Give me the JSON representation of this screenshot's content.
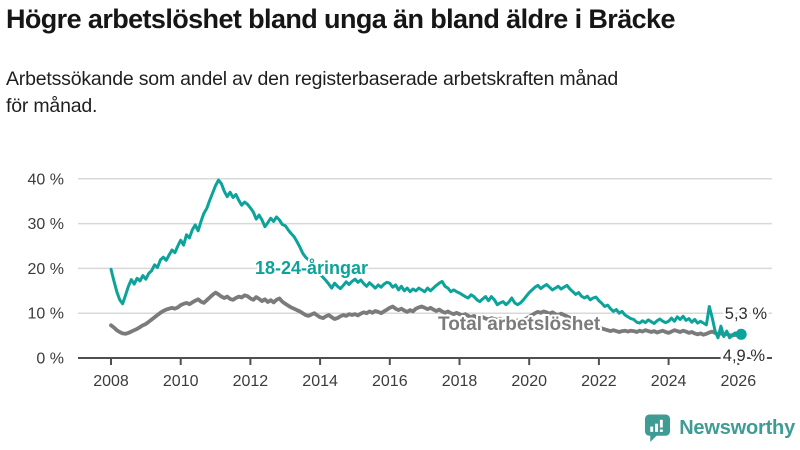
{
  "header": {
    "title": "Högre arbetslöshet bland unga än bland äldre i Bräcke",
    "subtitle_line1": "Arbetssökande som andel av den registerbaserade arbetskraften månad",
    "subtitle_line2": "för månad."
  },
  "chart_data": {
    "type": "line",
    "title": "Högre arbetslöshet bland unga än bland äldre i Bräcke",
    "subtitle": "Arbetssökande som andel av den registerbaserade arbetskraften månad för månad.",
    "frequency": "monthly",
    "x_start": "2008-01",
    "x_end": "2026-02",
    "x_tick_years": [
      2008,
      2010,
      2012,
      2014,
      2016,
      2018,
      2020,
      2022,
      2024,
      2026
    ],
    "x_tick_labels": [
      "2008",
      "2010",
      "2012",
      "2014",
      "2016",
      "2018",
      "2020",
      "2022",
      "2024",
      "2026"
    ],
    "y_tick_values": [
      0,
      10,
      20,
      30,
      40
    ],
    "y_tick_labels": [
      "0 %",
      "10 %",
      "20 %",
      "30 %",
      "40 %"
    ],
    "ylim": [
      0,
      42
    ],
    "grid": "horizontal",
    "colors": {
      "youth": "#0ca39a",
      "total": "#7b7b7b",
      "grid": "#d9d9d9",
      "axis": "#4f4f4f"
    },
    "series": [
      {
        "name": "18-24-åringar",
        "color": "#0ca39a",
        "end_label": "5,3 %",
        "end_value": 5.3,
        "end_dot": true,
        "values": [
          19.8,
          17.2,
          14.8,
          13.0,
          12.1,
          14.0,
          16.0,
          17.5,
          16.5,
          17.8,
          17.2,
          18.4,
          17.6,
          18.9,
          19.5,
          20.8,
          20.2,
          21.9,
          22.5,
          21.8,
          23.0,
          24.1,
          23.5,
          25.0,
          26.3,
          25.2,
          27.5,
          26.8,
          28.6,
          29.7,
          28.4,
          30.5,
          32.3,
          33.4,
          35.2,
          36.8,
          38.5,
          39.7,
          38.9,
          37.2,
          36.0,
          37.0,
          35.8,
          36.5,
          35.2,
          34.1,
          34.8,
          34.3,
          33.5,
          32.6,
          31.0,
          31.9,
          30.8,
          29.3,
          30.2,
          31.2,
          30.5,
          31.5,
          30.8,
          29.8,
          29.5,
          28.6,
          27.8,
          27.1,
          26.0,
          24.8,
          23.4,
          22.5,
          21.9,
          21.0,
          20.3,
          19.5,
          18.8,
          18.0,
          17.3,
          16.5,
          15.6,
          16.7,
          16.0,
          15.5,
          16.2,
          17.0,
          16.4,
          17.1,
          17.6,
          16.9,
          17.4,
          16.6,
          16.0,
          16.8,
          16.2,
          15.6,
          16.3,
          15.8,
          16.5,
          16.9,
          16.7,
          15.8,
          16.3,
          15.2,
          16.0,
          15.0,
          15.6,
          14.8,
          15.4,
          15.0,
          15.6,
          15.2,
          14.8,
          15.6,
          15.0,
          15.6,
          16.2,
          16.7,
          17.1,
          16.0,
          15.6,
          14.8,
          15.2,
          14.8,
          14.5,
          14.1,
          13.7,
          13.4,
          14.1,
          13.7,
          13.0,
          12.6,
          13.2,
          13.7,
          12.8,
          13.7,
          13.0,
          11.9,
          12.3,
          12.6,
          11.9,
          12.5,
          13.4,
          12.3,
          11.9,
          12.3,
          13.0,
          13.8,
          14.6,
          15.2,
          15.8,
          16.2,
          15.5,
          16.0,
          16.4,
          15.8,
          15.2,
          15.6,
          16.0,
          15.4,
          15.8,
          16.2,
          15.4,
          14.8,
          14.2,
          14.6,
          13.8,
          13.4,
          13.8,
          13.0,
          13.4,
          13.6,
          12.8,
          12.2,
          11.5,
          11.8,
          11.0,
          10.4,
          10.8,
          10.0,
          10.4,
          9.6,
          9.2,
          8.8,
          8.6,
          8.0,
          7.8,
          8.3,
          7.9,
          8.5,
          8.1,
          7.7,
          8.3,
          8.7,
          8.2,
          7.9,
          8.2,
          8.9,
          8.2,
          9.2,
          8.6,
          9.3,
          8.4,
          8.8,
          8.0,
          8.6,
          7.8,
          8.2,
          7.8,
          7.4,
          11.5,
          9.0,
          6.0,
          4.5,
          7.1,
          4.8,
          6.0,
          4.5,
          5.2,
          5.6,
          5.0,
          5.3
        ]
      },
      {
        "name": "Total arbetslöshet",
        "color": "#7b7b7b",
        "end_label": "4,9 %",
        "end_value": 4.9,
        "end_dot": false,
        "values": [
          7.3,
          6.8,
          6.2,
          5.8,
          5.5,
          5.4,
          5.6,
          5.9,
          6.2,
          6.5,
          6.9,
          7.3,
          7.6,
          8.1,
          8.6,
          9.1,
          9.6,
          10.1,
          10.5,
          10.8,
          11.0,
          11.2,
          11.0,
          11.3,
          11.8,
          12.1,
          12.3,
          12.0,
          12.4,
          12.8,
          13.1,
          12.6,
          12.3,
          12.9,
          13.5,
          14.1,
          14.6,
          14.2,
          13.7,
          13.4,
          13.7,
          13.2,
          13.0,
          13.4,
          13.7,
          13.5,
          14.0,
          13.8,
          13.3,
          13.0,
          13.6,
          13.2,
          12.7,
          13.1,
          12.5,
          12.9,
          12.4,
          13.0,
          13.3,
          12.6,
          12.1,
          11.7,
          11.3,
          11.0,
          10.7,
          10.4,
          10.0,
          9.6,
          9.4,
          9.7,
          10.0,
          9.5,
          9.1,
          8.9,
          9.3,
          9.6,
          9.1,
          8.7,
          8.9,
          9.3,
          9.6,
          9.4,
          9.8,
          9.6,
          9.8,
          9.5,
          9.9,
          10.2,
          10.0,
          10.4,
          10.1,
          10.5,
          10.3,
          10.0,
          10.4,
          10.8,
          11.2,
          11.5,
          11.0,
          10.7,
          11.0,
          10.6,
          10.3,
          10.7,
          10.4,
          11.0,
          11.3,
          11.5,
          11.2,
          10.9,
          11.2,
          10.8,
          10.5,
          10.8,
          10.4,
          10.1,
          10.4,
          10.0,
          9.8,
          10.1,
          9.8,
          9.5,
          9.8,
          9.4,
          9.1,
          9.4,
          9.0,
          8.8,
          9.1,
          8.8,
          8.6,
          8.9,
          8.7,
          8.5,
          8.8,
          8.5,
          8.3,
          8.6,
          8.3,
          8.1,
          8.4,
          8.2,
          8.5,
          8.8,
          9.2,
          9.6,
          10.0,
          10.3,
          10.1,
          10.4,
          10.2,
          9.9,
          10.2,
          9.8,
          9.6,
          9.9,
          9.6,
          9.3,
          9.0,
          8.7,
          8.4,
          8.1,
          7.8,
          7.6,
          7.9,
          7.5,
          7.3,
          7.0,
          6.8,
          6.6,
          6.4,
          6.2,
          6.0,
          6.2,
          6.0,
          5.8,
          6.0,
          6.1,
          5.9,
          6.1,
          6.0,
          5.8,
          6.1,
          5.9,
          6.2,
          6.0,
          5.8,
          6.0,
          5.7,
          5.9,
          6.1,
          5.8,
          5.6,
          5.9,
          6.2,
          6.0,
          5.8,
          6.1,
          5.9,
          5.6,
          5.8,
          5.5,
          5.3,
          5.5,
          5.2,
          5.4,
          5.7,
          5.9,
          5.6,
          5.3,
          5.5,
          5.2,
          5.4,
          5.1,
          5.0,
          5.2,
          5.0,
          4.9
        ]
      }
    ]
  },
  "footer": {
    "brand": "Newsworthy"
  }
}
